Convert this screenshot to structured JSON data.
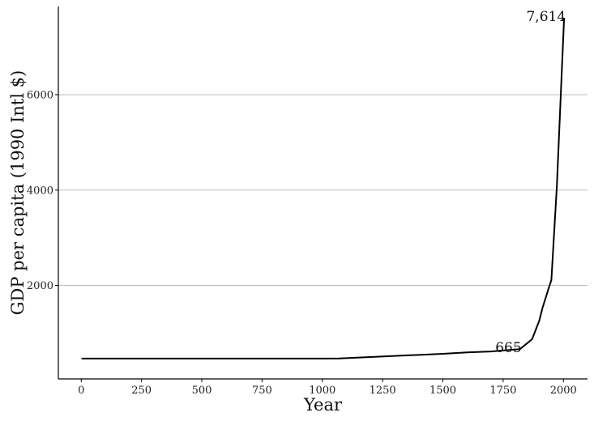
{
  "chart_data": {
    "type": "line",
    "title": "",
    "xlabel": "Year",
    "ylabel": "GDP per capita (1990 Intl $)",
    "xlim": [
      -95,
      2100
    ],
    "ylim": [
      40,
      7850
    ],
    "x_ticks": [
      0,
      250,
      500,
      750,
      1000,
      1250,
      1500,
      1750,
      2000
    ],
    "x_tick_labels": [
      "0",
      "250",
      "500",
      "750",
      "1000",
      "1250",
      "1500",
      "1750",
      "2000"
    ],
    "y_ticks": [
      2000,
      4000,
      6000
    ],
    "y_tick_labels": [
      "2000",
      "4000",
      "6000"
    ],
    "grid": "horizontal",
    "series": [
      {
        "x": [
          1,
          1000,
          1070,
          1500,
          1600,
          1700,
          1820,
          1870,
          1900,
          1913,
          1940,
          1950,
          1973,
          2003
        ],
        "y": [
          467,
          467,
          470,
          566,
          596,
          616,
          665,
          872,
          1262,
          1526,
          1960,
          2111,
          4091,
          7614
        ],
        "color": "#000000"
      }
    ],
    "annotations": [
      {
        "text": "665",
        "x": 1820,
        "y": 665
      },
      {
        "text": "7,614",
        "x": 2003,
        "y": 7614
      }
    ]
  }
}
